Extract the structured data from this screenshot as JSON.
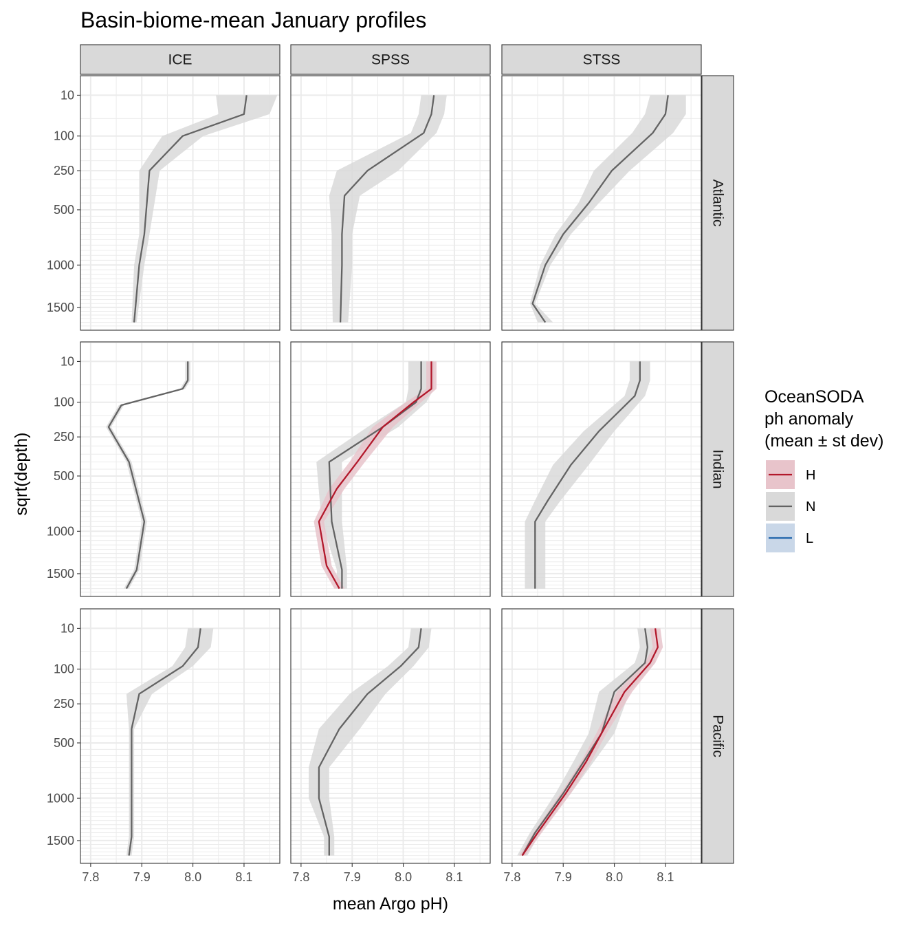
{
  "chart_data": {
    "type": "line",
    "title": "Basin-biome-mean January profiles",
    "xlabel": "mean Argo pH)",
    "ylabel": "sqrt(depth)",
    "xlim": [
      7.78,
      8.17
    ],
    "x_ticks": [
      7.8,
      7.9,
      8.0,
      8.1
    ],
    "x_tick_labels": [
      "7.8",
      "7.9",
      "8.0",
      "8.1"
    ],
    "y_scale": "sqrt",
    "ylim": [
      1800,
      0
    ],
    "y_ticks": [
      10,
      100,
      250,
      500,
      1000,
      1500
    ],
    "y_tick_labels": [
      "10",
      "100",
      "250",
      "500",
      "1000",
      "1500"
    ],
    "columns": [
      "ICE",
      "SPSS",
      "STSS"
    ],
    "rows": [
      "Atlantic",
      "Indian",
      "Pacific"
    ],
    "legend": {
      "title_lines": [
        "OceanSODA",
        "ph anomaly",
        "(mean ± st dev)"
      ],
      "position": "right",
      "entries": [
        {
          "key": "H",
          "line_color": "#b2182b",
          "fill_color": "#e8c4cb"
        },
        {
          "key": "N",
          "line_color": "#636363",
          "fill_color": "#d9d9d9"
        },
        {
          "key": "L",
          "line_color": "#2166ac",
          "fill_color": "#c9d7e8"
        }
      ]
    },
    "panels": [
      {
        "row": "Atlantic",
        "column": "ICE",
        "series": [
          {
            "key": "N",
            "depth": [
              10,
              40,
              100,
              250,
              700,
              1000,
              1700
            ],
            "ph": [
              8.105,
              8.1,
              7.98,
              7.915,
              7.905,
              7.895,
              7.885
            ],
            "sd": [
              0.06,
              0.05,
              0.04,
              0.02,
              0.01,
              0.01,
              0.005
            ]
          }
        ]
      },
      {
        "row": "Atlantic",
        "column": "SPSS",
        "series": [
          {
            "key": "N",
            "depth": [
              10,
              40,
              90,
              250,
              400,
              700,
              1000,
              1700
            ],
            "ph": [
              8.06,
              8.055,
              8.04,
              7.93,
              7.885,
              7.88,
              7.88,
              7.877
            ],
            "sd": [
              0.025,
              0.025,
              0.025,
              0.06,
              0.03,
              0.02,
              0.02,
              0.015
            ]
          }
        ]
      },
      {
        "row": "Atlantic",
        "column": "STSS",
        "series": [
          {
            "key": "N",
            "depth": [
              10,
              40,
              90,
              250,
              450,
              700,
              1000,
              1450,
              1700
            ],
            "ph": [
              8.105,
              8.1,
              8.075,
              7.995,
              7.95,
              7.9,
              7.865,
              7.84,
              7.865
            ],
            "sd": [
              0.035,
              0.04,
              0.04,
              0.035,
              0.02,
              0.015,
              0.01,
              0.005,
              0.015
            ]
          }
        ]
      },
      {
        "row": "Indian",
        "column": "ICE",
        "series": [
          {
            "key": "N",
            "depth": [
              10,
              40,
              60,
              110,
              200,
              400,
              900,
              1450,
              1700
            ],
            "ph": [
              7.99,
              7.99,
              7.98,
              7.86,
              7.835,
              7.875,
              7.905,
              7.89,
              7.87
            ],
            "sd": [
              0.005,
              0.005,
              0.005,
              0.005,
              0.005,
              0.005,
              0.005,
              0.005,
              0.005
            ]
          }
        ]
      },
      {
        "row": "Indian",
        "column": "SPSS",
        "series": [
          {
            "key": "N",
            "depth": [
              10,
              60,
              100,
              200,
              400,
              900,
              1450,
              1700
            ],
            "ph": [
              8.035,
              8.035,
              8.025,
              7.96,
              7.855,
              7.86,
              7.88,
              7.88
            ],
            "sd": [
              0.025,
              0.025,
              0.02,
              0.03,
              0.025,
              0.02,
              0.01,
              0.01
            ]
          },
          {
            "key": "H",
            "depth": [
              10,
              60,
              100,
              200,
              400,
              600,
              900,
              1400,
              1700
            ],
            "ph": [
              8.055,
              8.055,
              8.02,
              7.96,
              7.91,
              7.87,
              7.835,
              7.85,
              7.875
            ],
            "sd": [
              0.01,
              0.01,
              0.015,
              0.02,
              0.015,
              0.015,
              0.01,
              0.01,
              0.01
            ]
          }
        ]
      },
      {
        "row": "Indian",
        "column": "STSS",
        "series": [
          {
            "key": "N",
            "depth": [
              10,
              40,
              80,
              220,
              420,
              700,
              900,
              1700
            ],
            "ph": [
              8.05,
              8.05,
              8.04,
              7.97,
              7.915,
              7.87,
              7.845,
              7.845
            ],
            "sd": [
              0.02,
              0.02,
              0.02,
              0.03,
              0.035,
              0.025,
              0.02,
              0.02
            ]
          }
        ]
      },
      {
        "row": "Pacific",
        "column": "ICE",
        "series": [
          {
            "key": "N",
            "depth": [
              10,
              40,
              90,
              200,
              400,
              700,
              1000,
              1450,
              1700
            ],
            "ph": [
              8.015,
              8.01,
              7.98,
              7.895,
              7.88,
              7.88,
              7.88,
              7.88,
              7.875
            ],
            "sd": [
              0.025,
              0.025,
              0.02,
              0.025,
              0.005,
              0.005,
              0.005,
              0.005,
              0.005
            ]
          }
        ]
      },
      {
        "row": "Pacific",
        "column": "SPSS",
        "series": [
          {
            "key": "N",
            "depth": [
              10,
              40,
              90,
              200,
              400,
              700,
              1000,
              1450,
              1700
            ],
            "ph": [
              8.035,
              8.03,
              7.995,
              7.93,
              7.875,
              7.835,
              7.835,
              7.855,
              7.855
            ],
            "sd": [
              0.02,
              0.02,
              0.025,
              0.035,
              0.04,
              0.02,
              0.02,
              0.01,
              0.01
            ]
          }
        ]
      },
      {
        "row": "Pacific",
        "column": "STSS",
        "series": [
          {
            "key": "N",
            "depth": [
              10,
              40,
              80,
              190,
              430,
              650,
              950,
              1400,
              1700
            ],
            "ph": [
              8.06,
              8.065,
              8.06,
              8.0,
              7.975,
              7.94,
              7.9,
              7.845,
              7.82
            ],
            "sd": [
              0.015,
              0.015,
              0.02,
              0.03,
              0.025,
              0.02,
              0.015,
              0.01,
              0.01
            ]
          },
          {
            "key": "H",
            "depth": [
              10,
              40,
              80,
              190,
              430,
              650,
              950,
              1400,
              1700
            ],
            "ph": [
              8.08,
              8.085,
              8.07,
              8.02,
              7.975,
              7.945,
              7.905,
              7.85,
              7.82
            ],
            "sd": [
              0.01,
              0.01,
              0.01,
              0.015,
              0.01,
              0.01,
              0.01,
              0.008,
              0.006
            ]
          }
        ]
      }
    ]
  }
}
